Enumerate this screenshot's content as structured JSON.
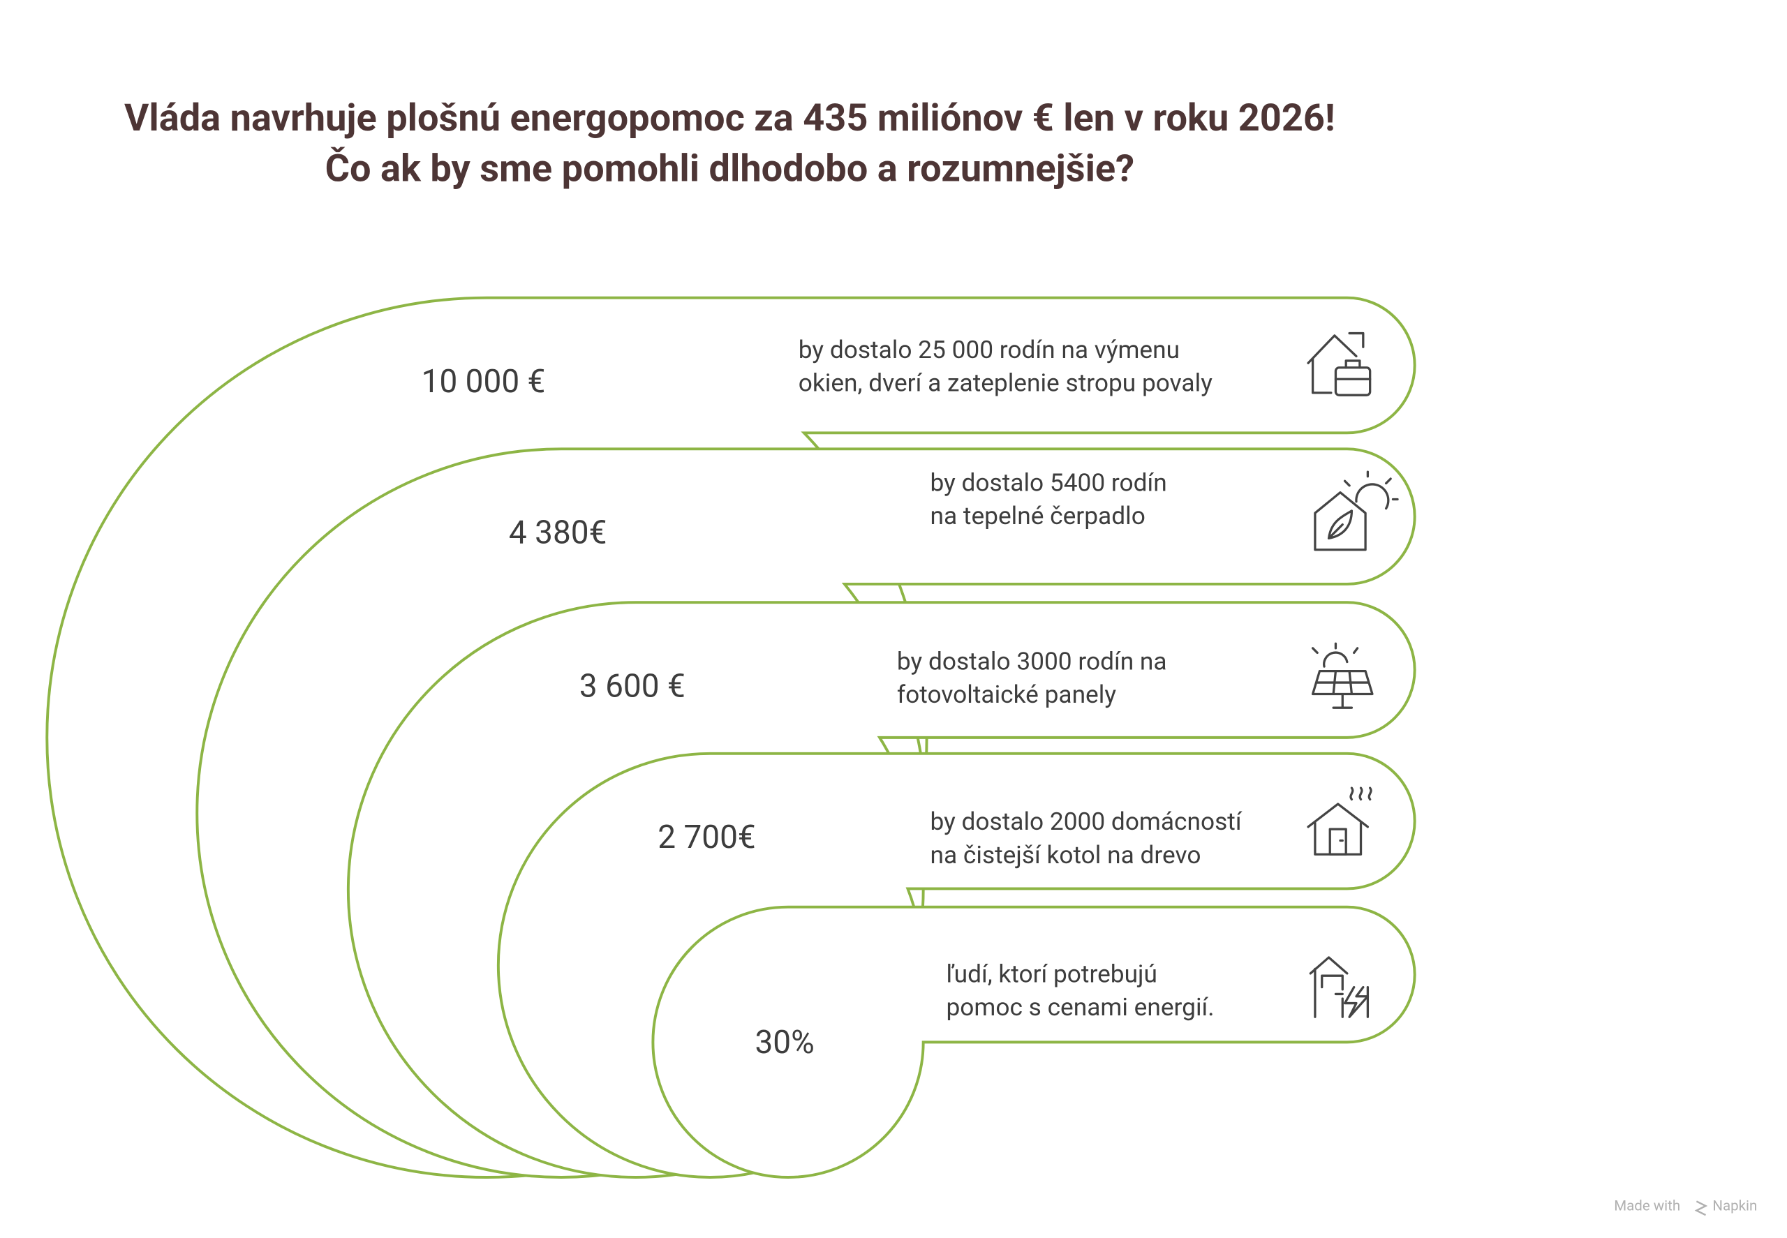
{
  "title": [
    "Vláda navrhuje plošnú energopomoc za 435 miliónov € len v roku 2026!",
    "Čo ak by sme pomohli dlhodobo a rozumnejšie?"
  ],
  "items": [
    {
      "value": "10 000 €",
      "text": [
        "by dostalo 25 000 rodín na výmenu",
        "okien, dverí a zateplenie stropu povaly"
      ]
    },
    {
      "value": "4 380€",
      "text": [
        "by dostalo 5400 rodín",
        "na tepelné čerpadlo"
      ]
    },
    {
      "value": "3 600 €",
      "text": [
        "by dostalo 3000 rodín na",
        "fotovoltaické panely"
      ]
    },
    {
      "value": "2 700€",
      "text": [
        "by dostalo 2000 domácností",
        "na čistejší kotol na drevo"
      ]
    },
    {
      "value": "30%",
      "text": [
        "ľudí, ktorí potrebujú",
        "pomoc s cenami energií."
      ]
    }
  ],
  "footer": {
    "made_with": "Made with",
    "brand": "Napkin"
  }
}
